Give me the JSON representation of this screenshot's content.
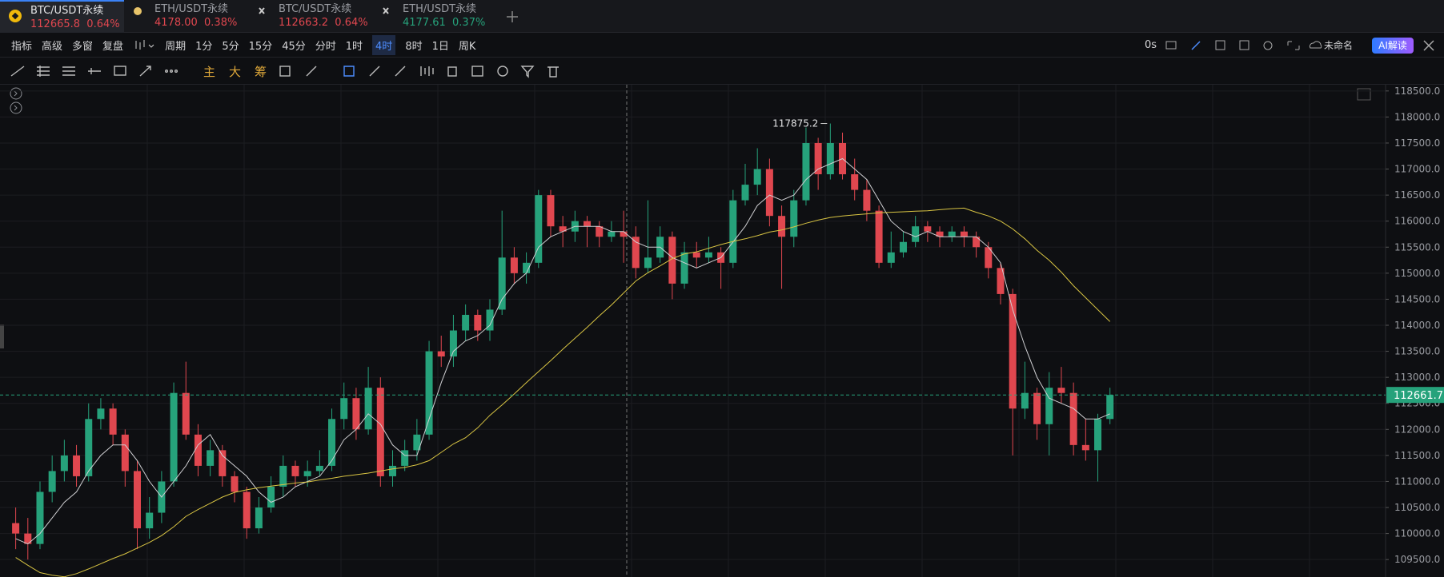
{
  "tabs": [
    {
      "symbol": "BTC/USDT永续",
      "price": "112665.8",
      "change": "0.64%"
    },
    {
      "symbol": "ETH/USDT永续",
      "price": "4178.00",
      "change": "0.38%"
    },
    {
      "symbol": "BTC/USDT永续",
      "price": "112663.2",
      "change": "0.64%"
    },
    {
      "symbol": "ETH/USDT永续",
      "price": "4177.61",
      "change": "0.37%"
    }
  ],
  "toolbar": {
    "left": [
      "指标",
      "高级",
      "多窗",
      "复盘"
    ],
    "period": "周期",
    "intervals": [
      "1分",
      "5分",
      "15分",
      "45分",
      "分时",
      "1时",
      "4时",
      "8时",
      "1日",
      "周K"
    ],
    "active_interval": "4时",
    "timer": "0s",
    "layout_name": "未命名",
    "ai_button": "AI解读"
  },
  "drawing_tools": [
    "主",
    "大",
    "筹"
  ],
  "chart_data": {
    "type": "candlestick",
    "up_color": "#26a27b",
    "down_color": "#e0474f",
    "ylim": [
      109165,
      118620
    ],
    "yticks": [
      {
        "value": 109500,
        "label": "109500.0"
      },
      {
        "value": 110000,
        "label": "110000.0"
      },
      {
        "value": 110500,
        "label": "110500.0"
      },
      {
        "value": 111000,
        "label": "111000.0"
      },
      {
        "value": 111500,
        "label": "111500.0"
      },
      {
        "value": 112000,
        "label": "112000.0"
      },
      {
        "value": 112500,
        "label": "112500.0"
      },
      {
        "value": 113000,
        "label": "113000.0"
      },
      {
        "value": 113500,
        "label": "113500.0"
      },
      {
        "value": 114000,
        "label": "114000.0"
      },
      {
        "value": 114500,
        "label": "114500.0"
      },
      {
        "value": 115000,
        "label": "115000.0"
      },
      {
        "value": 115500,
        "label": "115500.0"
      },
      {
        "value": 116000,
        "label": "116000.0"
      },
      {
        "value": 116500,
        "label": "116500.0"
      },
      {
        "value": 117000,
        "label": "117000.0"
      },
      {
        "value": 117500,
        "label": "117500.0"
      },
      {
        "value": 118000,
        "label": "118000.0"
      },
      {
        "value": 118500,
        "label": "118500.0"
      }
    ],
    "grid": true,
    "open": [
      110200,
      110000,
      109800,
      110800,
      111200,
      111500,
      111100,
      112200,
      112400,
      111900,
      111200,
      110100,
      110400,
      111000,
      112700,
      111900,
      111300,
      111600,
      111100,
      110800,
      110100,
      110500,
      110900,
      111300,
      111100,
      111200,
      111300,
      112200,
      112600,
      112000,
      112800,
      111100,
      111300,
      111600,
      111900,
      113500,
      113400,
      113900,
      114200,
      113900,
      114300,
      115300,
      115000,
      115200,
      116500,
      115900,
      115800,
      116000,
      115900,
      115700,
      115800,
      115700,
      115100,
      115300,
      115700,
      114800,
      115400,
      115300,
      115400,
      115200,
      116400,
      116700,
      117000,
      116100,
      115700,
      116400,
      117500,
      116900,
      117500,
      116900,
      116600,
      116200,
      115200,
      115400,
      115600,
      115900,
      115800,
      115700,
      115800,
      115700,
      115500,
      115100,
      114600,
      112400,
      112700,
      112100,
      112800,
      112700,
      111700,
      111600,
      112200
    ],
    "high": [
      110500,
      110300,
      111000,
      111500,
      111800,
      111700,
      112500,
      112600,
      112500,
      112000,
      111400,
      110700,
      111200,
      112900,
      113300,
      112100,
      111800,
      111700,
      111200,
      110900,
      110700,
      111100,
      111500,
      111400,
      111400,
      111600,
      112400,
      112900,
      112800,
      113200,
      113000,
      111600,
      111800,
      112200,
      113700,
      113800,
      114200,
      114400,
      114300,
      114500,
      116200,
      115500,
      115400,
      116600,
      116600,
      116100,
      116200,
      116100,
      116000,
      116000,
      116200,
      115900,
      116400,
      115900,
      115800,
      115600,
      115600,
      115700,
      115500,
      116600,
      117100,
      117400,
      117200,
      116300,
      116600,
      117800,
      117600,
      117875.2,
      117700,
      117200,
      116800,
      116300,
      115800,
      115800,
      116100,
      116000,
      115900,
      115900,
      115900,
      115800,
      115600,
      115200,
      114700,
      113300,
      112800,
      113100,
      113200,
      112900,
      112200,
      112300,
      112800
    ],
    "low": [
      109700,
      109500,
      109700,
      110600,
      111000,
      110900,
      111000,
      112000,
      111700,
      110900,
      109700,
      109900,
      110200,
      110900,
      111800,
      111100,
      111100,
      110900,
      110600,
      109900,
      110000,
      110400,
      110700,
      110900,
      110900,
      111100,
      111200,
      112000,
      111800,
      111900,
      110900,
      110900,
      111200,
      111400,
      111800,
      113200,
      113200,
      113700,
      113700,
      113700,
      114200,
      114800,
      114800,
      115100,
      115700,
      115500,
      115600,
      115500,
      115500,
      115600,
      115200,
      114900,
      115000,
      115200,
      114500,
      114700,
      115100,
      115200,
      114700,
      115100,
      116300,
      116500,
      115900,
      114700,
      115500,
      116300,
      116600,
      116800,
      116800,
      116400,
      116000,
      115100,
      115100,
      115300,
      115500,
      115600,
      115500,
      115600,
      115500,
      115300,
      114900,
      114400,
      111500,
      112200,
      111800,
      111500,
      112500,
      111500,
      111400,
      111000,
      112100
    ],
    "close": [
      110000,
      109800,
      110800,
      111200,
      111500,
      111100,
      112200,
      112400,
      111900,
      111200,
      110100,
      110400,
      111000,
      112700,
      111900,
      111300,
      111600,
      111100,
      110800,
      110100,
      110500,
      110900,
      111300,
      111100,
      111200,
      111300,
      112200,
      112600,
      112000,
      112800,
      111100,
      111300,
      111600,
      111900,
      113500,
      113400,
      113900,
      114200,
      113900,
      114300,
      115300,
      115000,
      115200,
      116500,
      115900,
      115800,
      116000,
      115900,
      115700,
      115800,
      115700,
      115100,
      115300,
      115700,
      114800,
      115400,
      115300,
      115400,
      115200,
      116400,
      116700,
      117000,
      116100,
      115700,
      116400,
      117500,
      116900,
      117500,
      116900,
      116600,
      116200,
      115200,
      115400,
      115600,
      115900,
      115800,
      115700,
      115800,
      115700,
      115500,
      115100,
      114600,
      112400,
      112700,
      112100,
      112800,
      112700,
      111700,
      111600,
      112200,
      112661.7
    ],
    "moving_averages": [
      {
        "color": "#cfcfd2",
        "values": [
          109900,
          109800,
          110000,
          110300,
          110600,
          110800,
          111200,
          111500,
          111700,
          111700,
          111400,
          111000,
          110700,
          111000,
          111300,
          111700,
          111900,
          111500,
          111300,
          111100,
          110800,
          110600,
          110700,
          110900,
          111000,
          111100,
          111400,
          111800,
          112000,
          112300,
          112100,
          111700,
          111500,
          111500,
          112200,
          112900,
          113500,
          113700,
          113800,
          114000,
          114500,
          114800,
          115000,
          115500,
          115700,
          115800,
          115900,
          115900,
          115900,
          115800,
          115800,
          115600,
          115500,
          115500,
          115300,
          115200,
          115100,
          115200,
          115300,
          115600,
          115900,
          116300,
          116500,
          116400,
          116500,
          116800,
          117000,
          117100,
          117200,
          117000,
          116800,
          116400,
          116000,
          115800,
          115700,
          115800,
          115700,
          115700,
          115700,
          115700,
          115500,
          115200,
          114300,
          113600,
          113000,
          112600,
          112500,
          112400,
          112200,
          112200,
          112300
        ]
      },
      {
        "color": "#d8c443",
        "values": [
          109540,
          109390,
          109250,
          109200,
          109170,
          109230,
          109320,
          109420,
          109520,
          109610,
          109720,
          109830,
          109960,
          110130,
          110330,
          110460,
          110580,
          110700,
          110790,
          110840,
          110880,
          110910,
          110940,
          110970,
          110990,
          111030,
          111060,
          111100,
          111130,
          111160,
          111200,
          111240,
          111270,
          111320,
          111400,
          111560,
          111720,
          111840,
          112030,
          112270,
          112470,
          112680,
          112900,
          113110,
          113320,
          113540,
          113750,
          113960,
          114180,
          114390,
          114620,
          114850,
          115010,
          115140,
          115280,
          115370,
          115410,
          115480,
          115550,
          115610,
          115660,
          115720,
          115790,
          115830,
          115890,
          115960,
          116020,
          116070,
          116100,
          116120,
          116140,
          116160,
          116170,
          116180,
          116190,
          116200,
          116220,
          116240,
          116250,
          116170,
          116100,
          116000,
          115850,
          115660,
          115440,
          115250,
          115020,
          114760,
          114530,
          114300,
          114070
        ]
      }
    ],
    "high_marker_index": 67
  }
}
